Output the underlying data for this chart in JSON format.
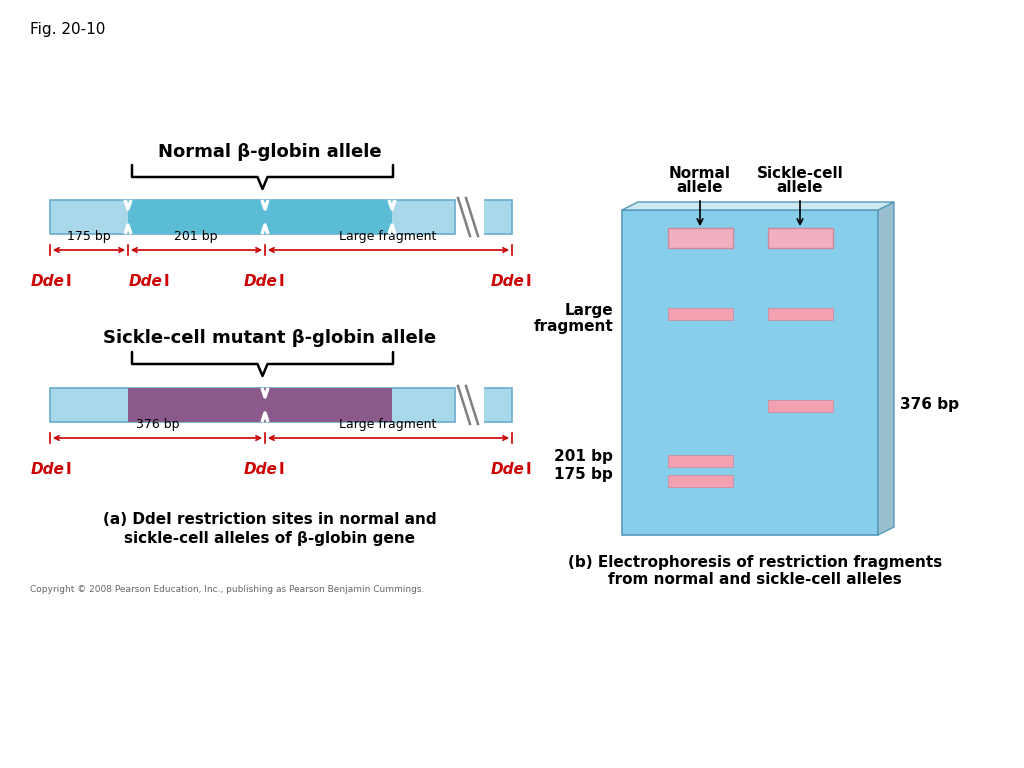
{
  "fig_label": "Fig. 20-10",
  "bg_color": "#ffffff",
  "light_blue": "#a8d8ea",
  "mid_blue": "#5bbcd6",
  "purple": "#8B5A8B",
  "pink_band": "#F4A0B0",
  "gel_blue": "#87CEEB",
  "normal_title": "Normal β-globin allele",
  "sickle_title": "Sickle-cell mutant β-globin allele",
  "caption_a": "(a) DdeI restriction sites in normal and\nsickle-cell alleles of β-globin gene",
  "caption_b": "(b) Electrophoresis of restriction fragments\nfrom normal and sickle-cell alleles",
  "copyright": "Copyright © 2008 Pearson Education, Inc., publishing as Pearson Benjamin Cummings.",
  "dde_color": "#cc0000",
  "arrow_color": "#cc0000"
}
